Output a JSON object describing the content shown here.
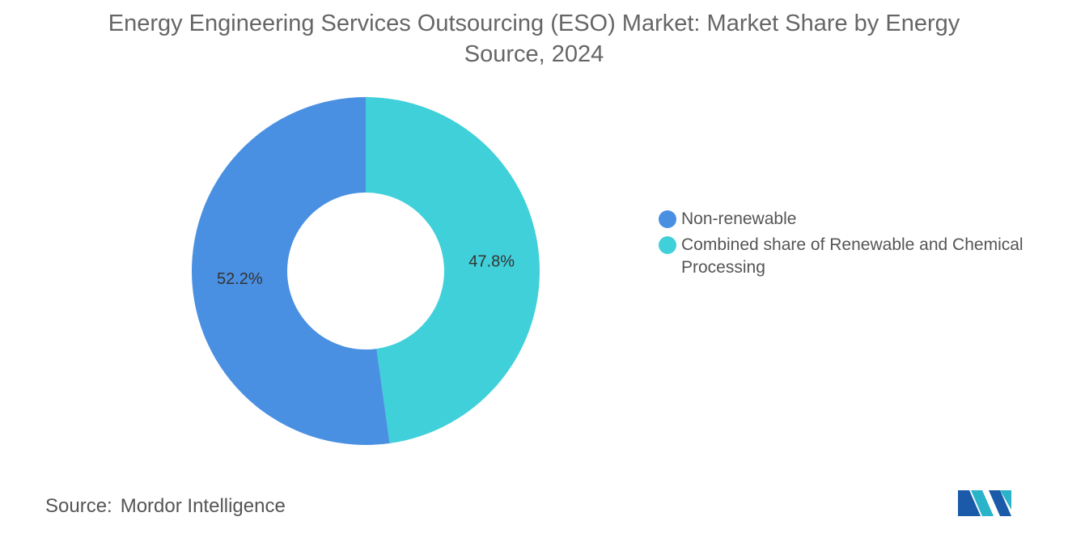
{
  "chart_data": {
    "type": "donut",
    "title": "Energy Engineering Services Outsourcing (ESO) Market: Market Share by Energy Source, 2024",
    "series": [
      {
        "name": "Non-renewable",
        "color": "#4a90e2"
      },
      {
        "name": "Combined share of Renewable and Chemical Processing",
        "color": "#40d0da"
      }
    ],
    "values": [
      52.2,
      47.8
    ],
    "value_labels": [
      "52.2%",
      "47.8%"
    ],
    "source_label": "Source:",
    "source": "Mordor Intelligence"
  }
}
